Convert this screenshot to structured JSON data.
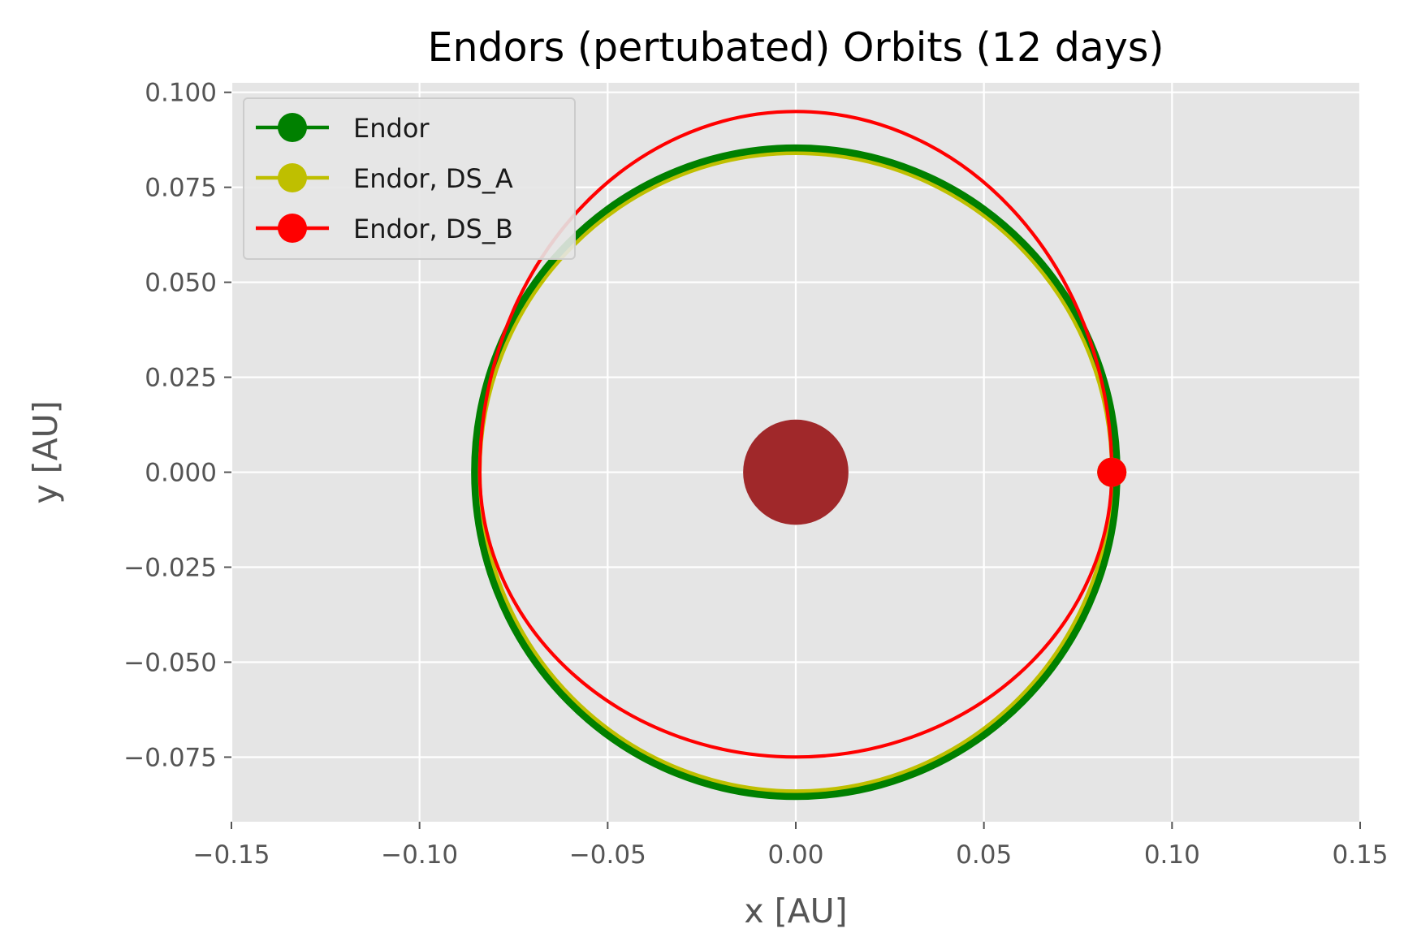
{
  "chart_data": {
    "type": "line",
    "title": "Endors (pertubated) Orbits (12 days)",
    "xlabel": "x [AU]",
    "ylabel": "y [AU]",
    "xlim": [
      -0.15,
      0.15
    ],
    "ylim": [
      -0.092,
      0.1025
    ],
    "x_ticks": [
      -0.15,
      -0.1,
      -0.05,
      0.0,
      0.05,
      0.1,
      0.15
    ],
    "x_tick_labels": [
      "−0.15",
      "−0.10",
      "−0.05",
      "0.00",
      "0.05",
      "0.10",
      "0.15"
    ],
    "y_ticks": [
      0.1,
      0.075,
      0.05,
      0.025,
      0.0,
      -0.025,
      -0.05,
      -0.075
    ],
    "y_tick_labels": [
      "0.100",
      "0.075",
      "0.050",
      "0.025",
      "0.000",
      "−0.025",
      "−0.050",
      "−0.075"
    ],
    "grid": true,
    "legend_position": "top-left",
    "central_body": {
      "x": 0.0,
      "y": 0.0,
      "radius": 0.014,
      "color": "#a0282a"
    },
    "series": [
      {
        "name": "Endor",
        "color": "#008000",
        "orbit": {
          "cx": 0.0,
          "cy": 0.0,
          "rx": 0.085,
          "ry_top": 0.085,
          "ry_bottom": 0.085
        },
        "marker": {
          "x": 0.084,
          "y": 0.0
        }
      },
      {
        "name": "Endor, DS_A",
        "color": "#bfbf00",
        "orbit": {
          "cx": 0.0,
          "cy": 0.0,
          "rx": 0.084,
          "ry_top": 0.084,
          "ry_bottom": 0.084
        },
        "marker": {
          "x": 0.084,
          "y": 0.0
        }
      },
      {
        "name": "Endor, DS_B",
        "color": "#ff0000",
        "orbit": {
          "cx": 0.0,
          "cy": 0.0,
          "rx": 0.084,
          "ry_top": 0.095,
          "ry_bottom": 0.075
        },
        "marker": {
          "x": 0.084,
          "y": 0.0
        }
      }
    ]
  }
}
